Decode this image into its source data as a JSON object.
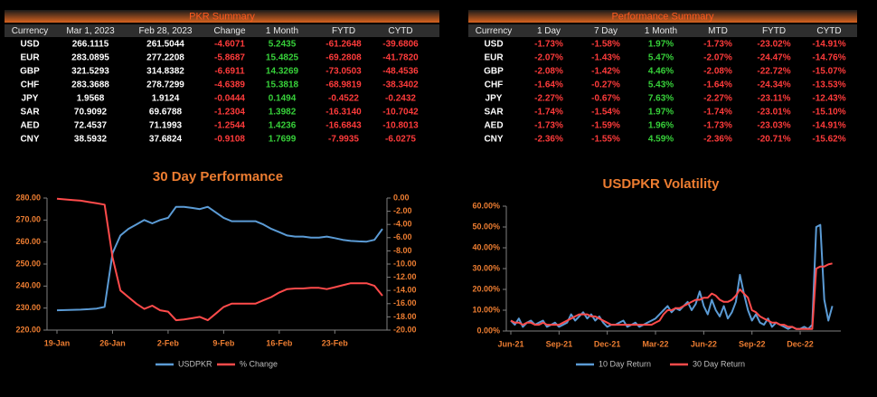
{
  "pkr_summary": {
    "title": "PKR Summary",
    "headers": [
      "Currency",
      "Mar 1, 2023",
      "Feb 28, 2023",
      "Change",
      "1 Month",
      "FYTD",
      "CYTD"
    ],
    "rows": [
      [
        "USD",
        "266.1115",
        "261.5044",
        "-4.6071",
        "5.2435",
        "-61.2648",
        "-39.6806"
      ],
      [
        "EUR",
        "283.0895",
        "277.2208",
        "-5.8687",
        "15.4825",
        "-69.2808",
        "-41.7820"
      ],
      [
        "GBP",
        "321.5293",
        "314.8382",
        "-6.6911",
        "14.3269",
        "-73.0503",
        "-48.4536"
      ],
      [
        "CHF",
        "283.3688",
        "278.7299",
        "-4.6389",
        "15.3818",
        "-68.9819",
        "-38.3402"
      ],
      [
        "JPY",
        "1.9568",
        "1.9124",
        "-0.0444",
        "0.1494",
        "-0.4522",
        "-0.2432"
      ],
      [
        "SAR",
        "70.9092",
        "69.6788",
        "-1.2304",
        "1.3982",
        "-16.3140",
        "-10.7042"
      ],
      [
        "AED",
        "72.4537",
        "71.1993",
        "-1.2544",
        "1.4236",
        "-16.6843",
        "-10.8013"
      ],
      [
        "CNY",
        "38.5932",
        "37.6824",
        "-0.9108",
        "1.7699",
        "-7.9935",
        "-6.0275"
      ]
    ]
  },
  "performance_summary": {
    "title": "Performance Summary",
    "headers": [
      "Currency",
      "1 Day",
      "7 Day",
      "1 Month",
      "MTD",
      "FYTD",
      "CYTD"
    ],
    "rows": [
      [
        "USD",
        "-1.73%",
        "-1.58%",
        "1.97%",
        "-1.73%",
        "-23.02%",
        "-14.91%"
      ],
      [
        "EUR",
        "-2.07%",
        "-1.43%",
        "5.47%",
        "-2.07%",
        "-24.47%",
        "-14.76%"
      ],
      [
        "GBP",
        "-2.08%",
        "-1.42%",
        "4.46%",
        "-2.08%",
        "-22.72%",
        "-15.07%"
      ],
      [
        "CHF",
        "-1.64%",
        "-0.27%",
        "5.43%",
        "-1.64%",
        "-24.34%",
        "-13.53%"
      ],
      [
        "JPY",
        "-2.27%",
        "-0.67%",
        "7.63%",
        "-2.27%",
        "-23.11%",
        "-12.43%"
      ],
      [
        "SAR",
        "-1.74%",
        "-1.54%",
        "1.97%",
        "-1.74%",
        "-23.01%",
        "-15.10%"
      ],
      [
        "AED",
        "-1.73%",
        "-1.59%",
        "1.96%",
        "-1.73%",
        "-23.03%",
        "-14.91%"
      ],
      [
        "CNY",
        "-2.36%",
        "-1.55%",
        "4.59%",
        "-2.36%",
        "-20.71%",
        "-15.62%"
      ]
    ]
  },
  "chart_data": [
    {
      "type": "line",
      "title": "30 Day Performance",
      "categories": [
        "19-Jan",
        null,
        null,
        null,
        null,
        null,
        null,
        "26-Jan",
        null,
        null,
        null,
        null,
        null,
        null,
        "2-Feb",
        null,
        null,
        null,
        null,
        null,
        null,
        "9-Feb",
        null,
        null,
        null,
        null,
        null,
        null,
        "16-Feb",
        null,
        null,
        null,
        null,
        null,
        null,
        "23-Feb",
        null,
        null,
        null,
        null,
        null,
        null
      ],
      "series": [
        {
          "name": "USDPKR",
          "color": "#5b9bd5",
          "values": [
            229,
            229.1,
            229.2,
            229.3,
            229.5,
            229.8,
            230.5,
            255,
            263,
            266,
            268,
            270,
            268.5,
            270,
            271,
            276,
            276,
            275.5,
            275,
            276,
            273.5,
            271,
            269.5,
            269.5,
            269.5,
            269.5,
            268,
            266,
            264.5,
            263,
            262.5,
            262.5,
            262,
            262,
            262.5,
            261.8,
            261,
            260.5,
            260.3,
            260.2,
            261,
            266
          ]
        },
        {
          "name": "% Change",
          "color": "#ff4b4b",
          "axis": "y2",
          "values": [
            -0.1,
            -0.2,
            -0.3,
            -0.4,
            -0.6,
            -0.8,
            -1,
            -9,
            -14,
            -15,
            -16,
            -16.8,
            -16.3,
            -17,
            -17.2,
            -18.5,
            -18.4,
            -18.2,
            -18,
            -18.5,
            -17.5,
            -16.5,
            -16,
            -16,
            -16,
            -16,
            -15.5,
            -15,
            -14.3,
            -13.8,
            -13.7,
            -13.7,
            -13.6,
            -13.6,
            -13.8,
            -13.5,
            -13.2,
            -12.9,
            -12.9,
            -12.9,
            -13.3,
            -14.8
          ]
        }
      ],
      "ylim": [
        220,
        280
      ],
      "yticks": [
        {
          "value": 220,
          "label": "220.00"
        },
        {
          "value": 230,
          "label": "230.00"
        },
        {
          "value": 240,
          "label": "240.00"
        },
        {
          "value": 250,
          "label": "250.00"
        },
        {
          "value": 260,
          "label": "260.00"
        },
        {
          "value": 270,
          "label": "270.00"
        },
        {
          "value": 280,
          "label": "280.00"
        }
      ],
      "y2lim": [
        -20,
        0
      ],
      "y2ticks": [
        {
          "value": 0,
          "label": "0.00"
        },
        {
          "value": -2,
          "label": "-2.00"
        },
        {
          "value": -4,
          "label": "-4.00"
        },
        {
          "value": -6,
          "label": "-6.00"
        },
        {
          "value": -8,
          "label": "-8.00"
        },
        {
          "value": -10,
          "label": "-10.00"
        },
        {
          "value": -12,
          "label": "-12.00"
        },
        {
          "value": -14,
          "label": "-14.00"
        },
        {
          "value": -16,
          "label": "-16.00"
        },
        {
          "value": -18,
          "label": "-18.00"
        },
        {
          "value": -20,
          "label": "-20.00"
        }
      ]
    },
    {
      "type": "line",
      "title": "USDPKR Volatility",
      "categories": [
        "Jun-21",
        null,
        null,
        null,
        null,
        null,
        null,
        null,
        null,
        null,
        null,
        null,
        "Sep-21",
        null,
        null,
        null,
        null,
        null,
        null,
        null,
        null,
        null,
        null,
        null,
        "Dec-21",
        null,
        null,
        null,
        null,
        null,
        null,
        null,
        null,
        null,
        null,
        null,
        "Mar-22",
        null,
        null,
        null,
        null,
        null,
        null,
        null,
        null,
        null,
        null,
        null,
        "Jun-22",
        null,
        null,
        null,
        null,
        null,
        null,
        null,
        null,
        null,
        null,
        null,
        "Sep-22",
        null,
        null,
        null,
        null,
        null,
        null,
        null,
        null,
        null,
        null,
        null,
        "Dec-22",
        null,
        null,
        null,
        null,
        null,
        null,
        null,
        null
      ],
      "series": [
        {
          "name": "10 Day Return",
          "color": "#5b9bd5",
          "values": [
            5,
            3,
            6,
            2,
            4,
            5,
            3,
            4,
            5,
            2,
            3,
            4,
            2,
            3,
            4,
            8,
            5,
            7,
            9,
            6,
            8,
            5,
            7,
            4,
            2,
            3,
            3,
            4,
            5,
            2,
            3,
            4,
            2,
            3,
            4,
            5,
            6,
            8,
            10,
            12,
            9,
            11,
            10,
            12,
            14,
            10,
            13,
            19,
            12,
            8,
            15,
            10,
            7,
            12,
            6,
            9,
            14,
            27,
            18,
            10,
            5,
            8,
            4,
            3,
            6,
            2,
            4,
            3,
            2,
            1,
            2,
            1,
            1,
            2,
            1,
            3,
            50,
            51,
            15,
            5,
            12
          ]
        },
        {
          "name": "30 Day Return",
          "color": "#ff4b4b",
          "values": [
            5,
            4,
            4,
            3,
            4,
            4,
            3,
            3,
            4,
            3,
            3,
            3,
            3,
            4,
            5,
            6,
            7,
            8,
            8,
            8,
            7,
            7,
            6,
            5,
            4,
            3,
            3,
            3,
            3,
            3,
            3,
            3,
            3,
            3,
            3,
            3,
            4,
            5,
            8,
            10,
            10,
            11,
            11,
            12,
            13,
            14,
            15,
            15,
            16,
            16,
            18,
            17,
            15,
            14,
            14,
            15,
            17,
            20,
            18,
            16,
            10,
            9,
            7,
            6,
            5,
            4,
            4,
            3,
            3,
            2,
            2,
            1,
            1,
            1,
            1,
            1,
            30,
            31,
            31,
            32,
            32.5
          ]
        }
      ],
      "ylim": [
        0,
        60
      ],
      "yticks": [
        {
          "value": 0,
          "label": "0.00%"
        },
        {
          "value": 10,
          "label": "10.00%"
        },
        {
          "value": 20,
          "label": "20.00%"
        },
        {
          "value": 30,
          "label": "30.00%"
        },
        {
          "value": 40,
          "label": "40.00%"
        },
        {
          "value": 50,
          "label": "50.00%"
        },
        {
          "value": 60,
          "label": "60.00%"
        }
      ]
    }
  ]
}
